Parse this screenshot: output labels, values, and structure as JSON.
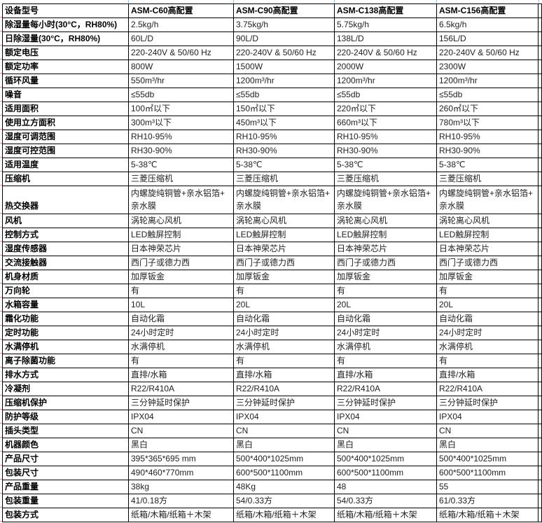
{
  "table": {
    "header": [
      "设备型号",
      "ASM-C60高配置",
      "ASM-C90高配置",
      "ASM-C138高配置",
      "ASM-C156高配置"
    ],
    "rows": [
      {
        "label": "除湿量每小时(30°C，RH80%)",
        "values": [
          "2.5kg/h",
          "3.75kg/h",
          "5.75kg/h",
          "6.5kg/h"
        ]
      },
      {
        "label": "日除湿量(30°C，RH80%)",
        "values": [
          "60L/D",
          "90L/D",
          "138L/D",
          "156L/D"
        ]
      },
      {
        "label": "额定电压",
        "values": [
          "220-240V & 50/60 Hz",
          "220-240V & 50/60 Hz",
          "220-240V & 50/60 Hz",
          "220-240V & 50/60 Hz"
        ]
      },
      {
        "label": "额定功率",
        "values": [
          "800W",
          "1500W",
          "2000W",
          "2300W"
        ]
      },
      {
        "label": "循环风量",
        "values": [
          "550m³/hr",
          "1200m³/hr",
          "1200m³/hr",
          "1200m³/hr"
        ]
      },
      {
        "label": "噪音",
        "values": [
          "≤55db",
          "≤55db",
          "≤55db",
          "≤55db"
        ]
      },
      {
        "label": "适用面积",
        "values": [
          "100㎡以下",
          "150㎡以下",
          "220㎡以下",
          "260㎡以下"
        ]
      },
      {
        "label": "使用立方面积",
        "values": [
          "300m³以下",
          "450m³以下",
          "660m³以下",
          "780m³以下"
        ]
      },
      {
        "label": "湿度可调范围",
        "values": [
          "RH10-95%",
          "RH10-95%",
          "RH10-95%",
          "RH10-95%"
        ]
      },
      {
        "label": "湿度可控范围",
        "values": [
          "RH30-90%",
          "RH30-90%",
          "RH30-90%",
          "RH30-90%"
        ]
      },
      {
        "label": "适用温度",
        "values": [
          "5-38℃",
          "5-38℃",
          "5-38℃",
          "5-38℃"
        ]
      },
      {
        "label": "压缩机",
        "values": [
          "三菱压缩机",
          "三菱压缩机",
          "三菱压缩机",
          "三菱压缩机"
        ]
      },
      {
        "label": "热交换器",
        "tall": true,
        "values": [
          "内螺旋纯铜管+亲水铝箔+\n亲水膜",
          "内螺旋纯铜管+亲水铝箔+\n亲水膜",
          "内螺旋纯铜管+亲水铝箔+\n亲水膜",
          "内螺旋纯铜管+亲水铝箔+\n亲水膜"
        ]
      },
      {
        "label": "风机",
        "values": [
          "涡轮离心风机",
          "涡轮离心风机",
          "涡轮离心风机",
          "涡轮离心风机"
        ]
      },
      {
        "label": "控制方式",
        "values": [
          "LED触屏控制",
          "LED触屏控制",
          "LED触屏控制",
          "LED触屏控制"
        ]
      },
      {
        "label": "湿度传感器",
        "values": [
          "日本神荣芯片",
          "日本神荣芯片",
          "日本神荣芯片",
          "日本神荣芯片"
        ]
      },
      {
        "label": "交流接触器",
        "values": [
          "西门子或德力西",
          "西门子或德力西",
          "西门子或德力西",
          "西门子或德力西"
        ]
      },
      {
        "label": "机身材质",
        "values": [
          "加厚钣金",
          "加厚钣金",
          "加厚钣金",
          "加厚钣金"
        ]
      },
      {
        "label": "万向轮",
        "values": [
          "有",
          "有",
          "有",
          "有"
        ]
      },
      {
        "label": "水箱容量",
        "values": [
          "10L",
          "20L",
          "20L",
          "20L"
        ]
      },
      {
        "label": "霜化功能",
        "values": [
          "自动化霜",
          "自动化霜",
          "自动化霜",
          "自动化霜"
        ]
      },
      {
        "label": "定时功能",
        "values": [
          "24小时定时",
          "24小时定时",
          "24小时定时",
          "24小时定时"
        ]
      },
      {
        "label": "水满停机",
        "values": [
          "水满停机",
          "水满停机",
          "水满停机",
          "水满停机"
        ]
      },
      {
        "label": "离子除菌功能",
        "values": [
          "有",
          "有",
          "有",
          "有"
        ]
      },
      {
        "label": "排水方式",
        "values": [
          "直排/水箱",
          "直排/水箱",
          "直排/水箱",
          "直排/水箱"
        ]
      },
      {
        "label": "冷凝剂",
        "values": [
          "R22/R410A",
          "R22/R410A",
          "R22/R410A",
          "R22/R410A"
        ]
      },
      {
        "label": "压缩机保护",
        "values": [
          "三分钟延时保护",
          "三分钟延时保护",
          "三分钟延时保护",
          "三分钟延时保护"
        ]
      },
      {
        "label": "防护等级",
        "values": [
          "IPX04",
          "IPX04",
          "IPX04",
          "IPX04"
        ]
      },
      {
        "label": "插头类型",
        "values": [
          "CN",
          "CN",
          "CN",
          "CN"
        ]
      },
      {
        "label": "机器颜色",
        "values": [
          "黑白",
          "黑白",
          "黑白",
          "黑白"
        ]
      },
      {
        "label": "产品尺寸",
        "values": [
          "395*365*695 mm",
          "500*400*1025mm",
          "500*400*1025mm",
          "500*400*1025mm"
        ]
      },
      {
        "label": "包装尺寸",
        "values": [
          "490*460*770mm",
          "600*500*1100mm",
          "600*500*1100mm",
          "600*500*1100mm"
        ]
      },
      {
        "label": "产品重量",
        "values": [
          "38kg",
          "48Kg",
          "48",
          "55"
        ]
      },
      {
        "label": "包装重量",
        "values": [
          "41/0.18方",
          "54/0.33方",
          "54/0.33方",
          "61/0.33方"
        ]
      },
      {
        "label": "包装方式",
        "values": [
          "纸箱/木箱/纸箱＋木架",
          "纸箱/木箱/纸箱＋木架",
          "纸箱/木箱/纸箱＋木架",
          "纸箱/木箱/纸箱＋木架"
        ]
      }
    ]
  },
  "colors": {
    "table_border": "#000000",
    "text": "#1f1f1f",
    "label_text": "#000000",
    "margin_gridline_blue": "#9dc3e6",
    "margin_gridline_red": "#e09a94",
    "background": "#ffffff"
  }
}
